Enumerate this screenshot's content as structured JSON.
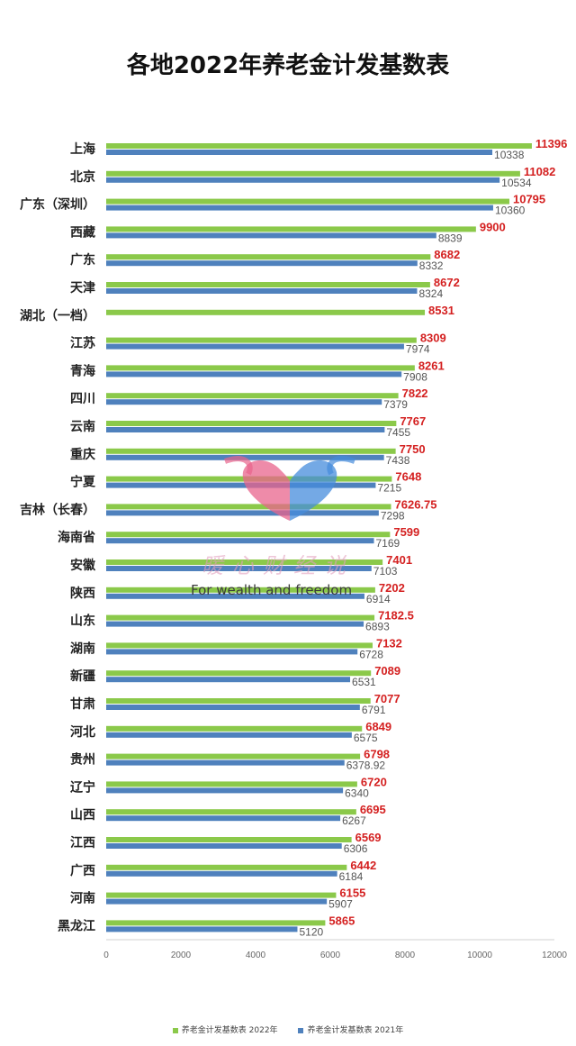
{
  "title": "各地2022年养老金计发基数表",
  "colors": {
    "series_2022": "#8BC94A",
    "series_2021": "#4F81BD",
    "label_2022": "#D42020",
    "label_2021": "#555555"
  },
  "watermark": {
    "text_cn": "暖心财经说",
    "text_en": "For wealth and freedom",
    "icon": "heart-logo-icon"
  },
  "chart_data": {
    "type": "bar",
    "orientation": "horizontal",
    "categories": [
      "上海",
      "北京",
      "广东（深圳）",
      "西藏",
      "广东",
      "天津",
      "湖北（一档）",
      "江苏",
      "青海",
      "四川",
      "云南",
      "重庆",
      "宁夏",
      "吉林（长春）",
      "海南省",
      "安徽",
      "陕西",
      "山东",
      "湖南",
      "新疆",
      "甘肃",
      "河北",
      "贵州",
      "辽宁",
      "山西",
      "江西",
      "广西",
      "河南",
      "黑龙江"
    ],
    "series": [
      {
        "name": "养老金计发基数表 2022年",
        "values": [
          11396,
          11082,
          10795,
          9900,
          8682,
          8672,
          8531,
          8309,
          8261,
          7822,
          7767,
          7750,
          7648,
          7626.75,
          7599,
          7401,
          7202,
          7182.5,
          7132,
          7089,
          7077,
          6849,
          6798,
          6720,
          6695,
          6569,
          6442,
          6155,
          5865
        ],
        "labels": [
          "11396",
          "11082",
          "10795",
          "9900",
          "8682",
          "8672",
          "8531",
          "8309",
          "8261",
          "7822",
          "7767",
          "7750",
          "7648",
          "7626.75",
          "7599",
          "7401",
          "7202",
          "7182.5",
          "7132",
          "7089",
          "7077",
          "6849",
          "6798",
          "6720",
          "6695",
          "6569",
          "6442",
          "6155",
          "5865"
        ]
      },
      {
        "name": "养老金计发基数表 2021年",
        "values": [
          10338,
          10534,
          10360,
          8839,
          8332,
          8324,
          null,
          7974,
          7908,
          7379,
          7455,
          7438,
          7215,
          7298,
          7169,
          7103,
          6914,
          6893,
          6728,
          6531,
          6791,
          6575,
          6378.92,
          6340,
          6267,
          6306,
          6184,
          5907,
          5120
        ],
        "labels": [
          "10338",
          "10534",
          "10360",
          "8839",
          "8332",
          "8324",
          null,
          "7974",
          "7908",
          "7379",
          "7455",
          "7438",
          "7215",
          "7298",
          "7169",
          "7103",
          "6914",
          "6893",
          "6728",
          "6531",
          "6791",
          "6575",
          "6378.92",
          "6340",
          "6267",
          "6306",
          "6184",
          "5907",
          "5120"
        ]
      }
    ],
    "x_ticks": [
      0,
      2000,
      4000,
      6000,
      8000,
      10000,
      12000
    ],
    "xlim": [
      0,
      12000
    ],
    "grid": false,
    "legend_position": "bottom"
  }
}
